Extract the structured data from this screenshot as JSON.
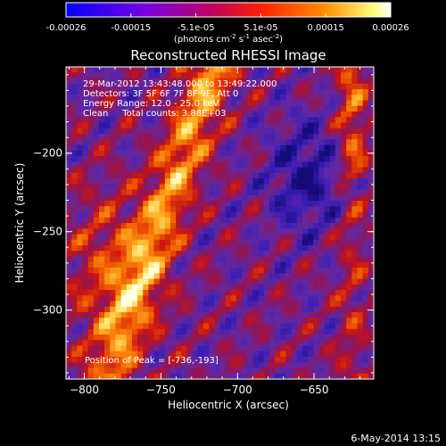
{
  "colorbar": {
    "ticks": [
      "-0.00026",
      "-0.00015",
      "-5.1e-05",
      "5.1e-05",
      "0.00015",
      "0.00026"
    ],
    "units_main": "(photons cm",
    "units_sup1": "-2",
    "units_mid": " s",
    "units_sup2": "-1",
    "units_mid2": " asec",
    "units_sup3": "-2",
    "units_end": ")"
  },
  "chart_data": {
    "type": "heatmap",
    "title": "Reconstructed RHESSI Image",
    "xlabel": "Heliocentric X (arcsec)",
    "ylabel": "Heliocentric Y (arcsec)",
    "xlim": [
      -812,
      -611
    ],
    "ylim": [
      -344,
      -145
    ],
    "xticks": [
      -800,
      -750,
      -700,
      -650
    ],
    "yticks": [
      -200,
      -250,
      -300
    ],
    "colorscale_range": [
      -0.00026,
      0.00026
    ],
    "colorscale": "blue-purple-red-orange-yellow-white",
    "peak_position": [
      -736,
      -193
    ],
    "annotations": [
      "29-Mar-2012 13:43:48.000 to 13:49:22.000",
      "Detectors: 3F 5F 6F 7F 8F 9F, Att 0",
      "Energy Range: 12.0 - 25.0 keV",
      "Clean     Total counts: 3.88E+03",
      "Position of Peak = [-736,-193]"
    ],
    "grid": false,
    "legend": "none"
  },
  "footer": {
    "date": "6-May-2014 13:15"
  }
}
